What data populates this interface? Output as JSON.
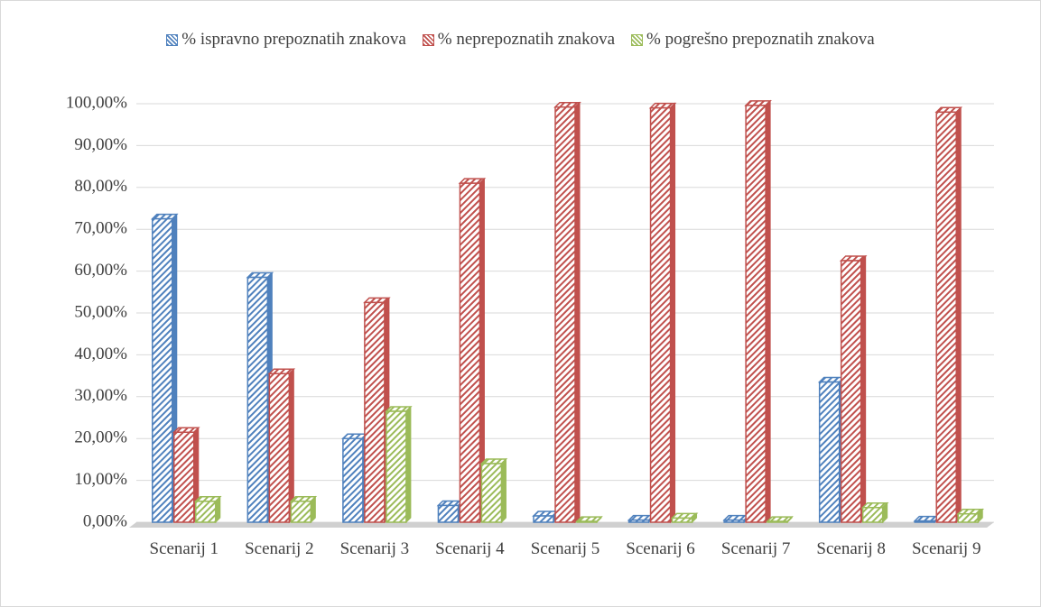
{
  "chart_data": {
    "type": "bar",
    "categories": [
      "Scenarij 1",
      "Scenarij 2",
      "Scenarij 3",
      "Scenarij 4",
      "Scenarij 5",
      "Scenarij 6",
      "Scenarij 7",
      "Scenarij 8",
      "Scenarij 9"
    ],
    "series": [
      {
        "name": "% ispravno prepoznatih znakova",
        "color": "#4f81bd",
        "values": [
          72.5,
          58.5,
          20,
          4,
          1.5,
          0.5,
          0.5,
          33.5,
          0.3
        ]
      },
      {
        "name": "% neprepoznatih znakova",
        "color": "#c0504d",
        "values": [
          21.5,
          35.5,
          52.5,
          81,
          99.2,
          99,
          99.6,
          62.5,
          98
        ]
      },
      {
        "name": "% pogrešno prepoznatih znakova",
        "color": "#9bbb59",
        "values": [
          5,
          5,
          26.5,
          14,
          0.2,
          1,
          0.2,
          3.5,
          2
        ]
      }
    ],
    "ylim": [
      0,
      100
    ],
    "yticks": [
      {
        "value": 0,
        "label": "0,00%"
      },
      {
        "value": 10,
        "label": "10,00%"
      },
      {
        "value": 20,
        "label": "20,00%"
      },
      {
        "value": 30,
        "label": "30,00%"
      },
      {
        "value": 40,
        "label": "40,00%"
      },
      {
        "value": 50,
        "label": "50,00%"
      },
      {
        "value": 60,
        "label": "60,00%"
      },
      {
        "value": 70,
        "label": "70,00%"
      },
      {
        "value": 80,
        "label": "80,00%"
      },
      {
        "value": 90,
        "label": "90,00%"
      },
      {
        "value": 100,
        "label": "100,00%"
      }
    ],
    "grid": true,
    "legend": "top"
  }
}
